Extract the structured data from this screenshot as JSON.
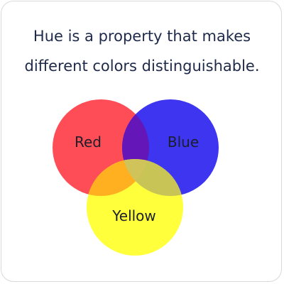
{
  "caption": {
    "line1": "Hue is a property that makes",
    "line2": "different colors distinguishable."
  },
  "venn": {
    "circles": [
      {
        "label": "Red",
        "color": "#ff4d57"
      },
      {
        "label": "Blue",
        "color": "#3d35f0"
      },
      {
        "label": "Yellow",
        "color": "#ffff3c"
      }
    ],
    "overlap_colors": {
      "red_blue": "#6416b8",
      "red_yellow": "#ffb020",
      "blue_yellow": "#c8c456",
      "all": "#d0c35a"
    }
  }
}
